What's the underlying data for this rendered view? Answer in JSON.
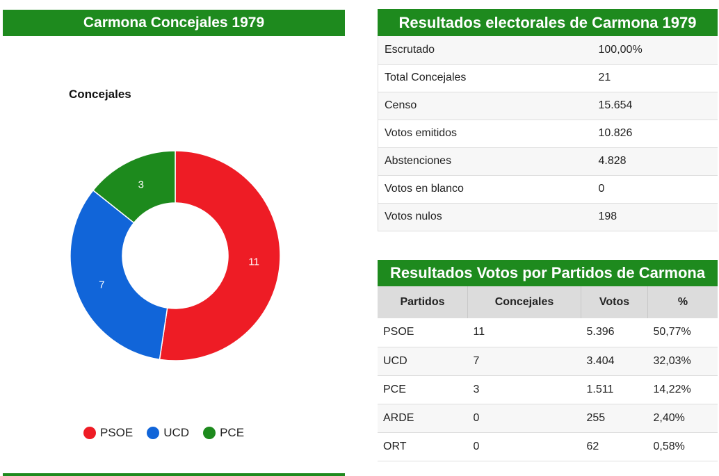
{
  "left_panel": {
    "title": "Carmona Concejales 1979"
  },
  "chart_data": {
    "type": "pie",
    "title": "Concejales",
    "categories": [
      "PSOE",
      "UCD",
      "PCE"
    ],
    "values": [
      11,
      7,
      3
    ],
    "colors": [
      "#ee1c25",
      "#1165d9",
      "#1d8a1d"
    ],
    "legend_position": "bottom"
  },
  "summary": {
    "title": "Resultados electorales de Carmona 1979",
    "rows": [
      {
        "label": "Escrutado",
        "value": "100,00%"
      },
      {
        "label": "Total Concejales",
        "value": "21"
      },
      {
        "label": "Censo",
        "value": "15.654"
      },
      {
        "label": "Votos emitidos",
        "value": "10.826"
      },
      {
        "label": "Abstenciones",
        "value": "4.828"
      },
      {
        "label": "Votos en blanco",
        "value": "0"
      },
      {
        "label": "Votos nulos",
        "value": "198"
      }
    ]
  },
  "parties": {
    "title": "Resultados Votos por Partidos de Carmona",
    "headers": [
      "Partidos",
      "Concejales",
      "Votos",
      "%"
    ],
    "rows": [
      [
        "PSOE",
        "11",
        "5.396",
        "50,77%"
      ],
      [
        "UCD",
        "7",
        "3.404",
        "32,03%"
      ],
      [
        "PCE",
        "3",
        "1.511",
        "14,22%"
      ],
      [
        "ARDE",
        "0",
        "255",
        "2,40%"
      ],
      [
        "ORT",
        "0",
        "62",
        "0,58%"
      ]
    ]
  }
}
